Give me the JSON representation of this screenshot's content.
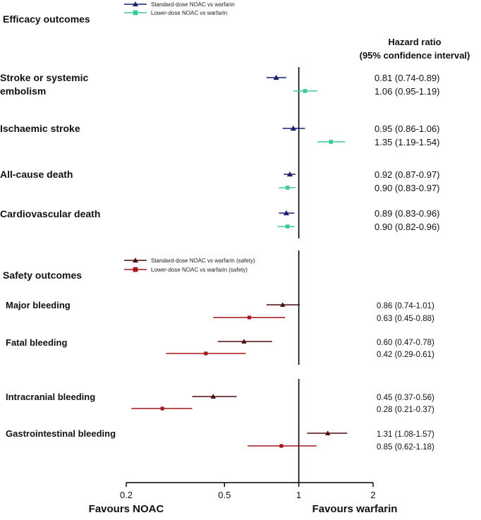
{
  "chart_data": {
    "type": "forest",
    "x_scale": "log",
    "xlim": [
      0.2,
      2
    ],
    "x_ticks": [
      "0.2",
      "0.5",
      "1",
      "2"
    ],
    "x_tick_values": [
      0.2,
      0.5,
      1,
      2
    ],
    "reference_line": 1,
    "favours_left": "Favours NOAC",
    "favours_right": "Favours warfarin",
    "hr_header_line1": "Hazard  ratio",
    "hr_header_line2": "(95% confidence interval)",
    "colors": {
      "standard_efficacy": "#1a1f6e",
      "lower_efficacy": "#3cc79a",
      "standard_safety": "#4a0c10",
      "lower_safety": "#a3141d",
      "axis": "#000000"
    },
    "sections": [
      {
        "id": "efficacy",
        "title": "Efficacy outcomes",
        "legend": [
          {
            "series": "standard",
            "marker": "triangle",
            "label": "Standard-dose NOAC vs warfarin"
          },
          {
            "series": "lower",
            "marker": "square",
            "label": "Lower-dose NOAC vs warfarin"
          }
        ],
        "outcomes": [
          {
            "label_lines": [
              "Stroke or systemic",
              "embolism"
            ],
            "rows": [
              {
                "series": "standard",
                "hr": 0.81,
                "lo": 0.74,
                "hi": 0.89,
                "text": "0.81 (0.74-0.89)"
              },
              {
                "series": "lower",
                "hr": 1.06,
                "lo": 0.95,
                "hi": 1.19,
                "text": "1.06 (0.95-1.19)"
              }
            ]
          },
          {
            "label_lines": [
              "Ischaemic stroke"
            ],
            "rows": [
              {
                "series": "standard",
                "hr": 0.95,
                "lo": 0.86,
                "hi": 1.06,
                "text": "0.95 (0.86-1.06)"
              },
              {
                "series": "lower",
                "hr": 1.35,
                "lo": 1.19,
                "hi": 1.54,
                "text": "1.35 (1.19-1.54)"
              }
            ]
          },
          {
            "label_lines": [
              "All-cause death"
            ],
            "rows": [
              {
                "series": "standard",
                "hr": 0.92,
                "lo": 0.87,
                "hi": 0.97,
                "text": "0.92 (0.87-0.97)"
              },
              {
                "series": "lower",
                "hr": 0.9,
                "lo": 0.83,
                "hi": 0.97,
                "text": "0.90 (0.83-0.97)"
              }
            ]
          },
          {
            "label_lines": [
              "Cardiovascular  death"
            ],
            "rows": [
              {
                "series": "standard",
                "hr": 0.89,
                "lo": 0.83,
                "hi": 0.96,
                "text": "0.89 (0.83-0.96)"
              },
              {
                "series": "lower",
                "hr": 0.9,
                "lo": 0.82,
                "hi": 0.96,
                "text": "0.90 (0.82-0.96)"
              }
            ]
          }
        ]
      },
      {
        "id": "safety",
        "title": "Safety outcomes",
        "legend": [
          {
            "series": "standard",
            "marker": "triangle",
            "label": "Standard-dose NOAC vs warfarin (safety)"
          },
          {
            "series": "lower",
            "marker": "square",
            "label": "Lower-dose NOAC vs warfarin (safety)"
          }
        ],
        "outcomes": [
          {
            "label_lines": [
              "Major bleeding"
            ],
            "rows": [
              {
                "series": "standard",
                "hr": 0.86,
                "lo": 0.74,
                "hi": 1.01,
                "text": "0.86 (0.74-1.01)"
              },
              {
                "series": "lower",
                "hr": 0.63,
                "lo": 0.45,
                "hi": 0.88,
                "text": "0.63 (0.45-0.88)"
              }
            ]
          },
          {
            "label_lines": [
              "Fatal bleeding"
            ],
            "rows": [
              {
                "series": "standard",
                "hr": 0.6,
                "lo": 0.47,
                "hi": 0.78,
                "text": "0.60 (0.47-0.78)"
              },
              {
                "series": "lower",
                "hr": 0.42,
                "lo": 0.29,
                "hi": 0.61,
                "text": "0.42 (0.29-0.61)"
              }
            ]
          },
          {
            "label_lines": [
              "Intracranial bleeding"
            ],
            "rows": [
              {
                "series": "standard",
                "hr": 0.45,
                "lo": 0.37,
                "hi": 0.56,
                "text": "0.45 (0.37-0.56)"
              },
              {
                "series": "lower",
                "hr": 0.28,
                "lo": 0.21,
                "hi": 0.37,
                "text": "0.28 (0.21-0.37)"
              }
            ]
          },
          {
            "label_lines": [
              "Gastrointestinal bleeding"
            ],
            "rows": [
              {
                "series": "standard",
                "hr": 1.31,
                "lo": 1.08,
                "hi": 1.57,
                "text": "1.31 (1.08-1.57)"
              },
              {
                "series": "lower",
                "hr": 0.85,
                "lo": 0.62,
                "hi": 1.18,
                "text": "0.85 (0.62-1.18)"
              }
            ]
          }
        ]
      }
    ]
  }
}
